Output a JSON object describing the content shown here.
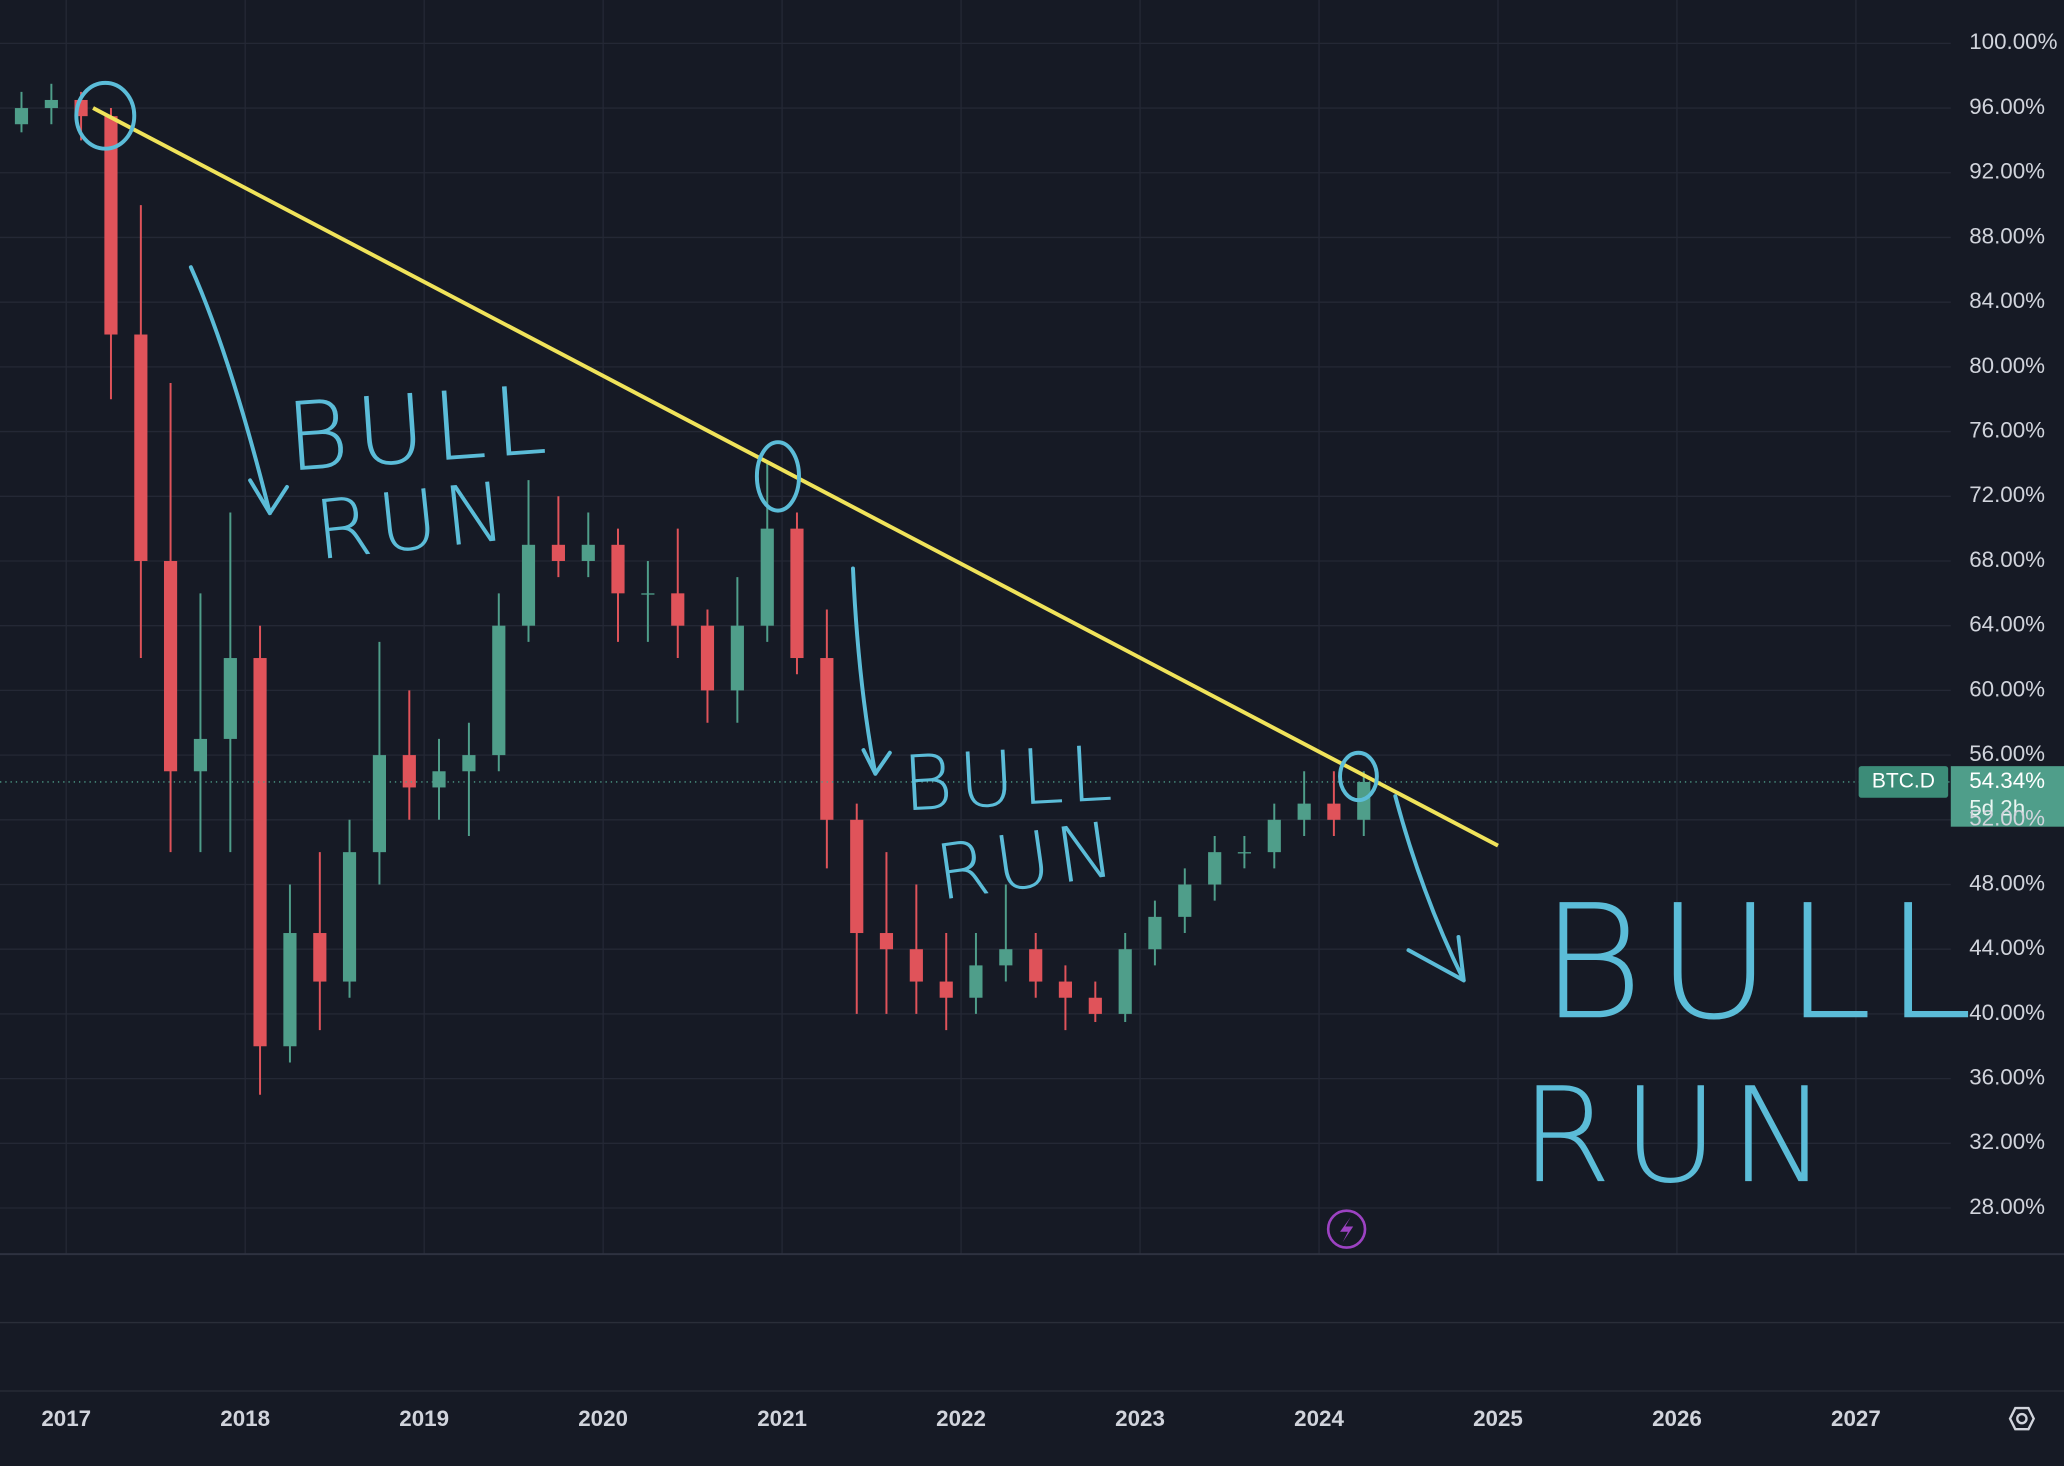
{
  "chart_data": {
    "type": "candlestick",
    "symbol": "BTC.D",
    "last_price": {
      "value": 54.34,
      "label": "54.34%"
    },
    "countdown": "5d 2h",
    "up_color": "#4f9e8a",
    "down_color": "#e0535a",
    "xlim": [
      2016.63,
      2027.53
    ],
    "ylim": [
      25.15,
      102.68
    ],
    "xticks": [
      2017,
      2018,
      2019,
      2020,
      2021,
      2022,
      2023,
      2024,
      2025,
      2026,
      2027
    ],
    "yticks": [
      {
        "value": 28,
        "label": "28.00%"
      },
      {
        "value": 32,
        "label": "32.00%"
      },
      {
        "value": 36,
        "label": "36.00%"
      },
      {
        "value": 40,
        "label": "40.00%"
      },
      {
        "value": 44,
        "label": "44.00%"
      },
      {
        "value": 48,
        "label": "48.00%"
      },
      {
        "value": 52,
        "label": "52.00%"
      },
      {
        "value": 56,
        "label": "56.00%"
      },
      {
        "value": 60,
        "label": "60.00%"
      },
      {
        "value": 64,
        "label": "64.00%"
      },
      {
        "value": 68,
        "label": "68.00%"
      },
      {
        "value": 72,
        "label": "72.00%"
      },
      {
        "value": 76,
        "label": "76.00%"
      },
      {
        "value": 80,
        "label": "80.00%"
      },
      {
        "value": 84,
        "label": "84.00%"
      },
      {
        "value": 88,
        "label": "88.00%"
      },
      {
        "value": 92,
        "label": "92.00%"
      },
      {
        "value": 96,
        "label": "96.00%"
      },
      {
        "value": 100,
        "label": "100.00%"
      }
    ],
    "grid": true,
    "candles": {
      "x": [
        2016.75,
        2016.917,
        2017.083,
        2017.25,
        2017.417,
        2017.583,
        2017.75,
        2017.917,
        2018.083,
        2018.25,
        2018.417,
        2018.583,
        2018.75,
        2018.917,
        2019.083,
        2019.25,
        2019.417,
        2019.583,
        2019.75,
        2019.917,
        2020.083,
        2020.25,
        2020.417,
        2020.583,
        2020.75,
        2020.917,
        2021.083,
        2021.25,
        2021.417,
        2021.583,
        2021.75,
        2021.917,
        2022.083,
        2022.25,
        2022.417,
        2022.583,
        2022.75,
        2022.917,
        2023.083,
        2023.25,
        2023.417,
        2023.583,
        2023.75,
        2023.917,
        2024.083,
        2024.25
      ],
      "open": [
        95,
        96,
        96.5,
        95.5,
        82,
        68,
        55,
        57,
        62,
        38,
        45,
        42,
        50,
        56,
        54,
        55,
        56,
        64,
        69,
        68,
        69,
        66,
        66,
        64,
        60,
        64,
        70,
        62,
        52,
        45,
        44,
        42,
        41,
        43,
        44,
        42,
        41,
        40,
        44,
        46,
        48,
        50,
        50,
        52,
        53,
        52
      ],
      "high": [
        97,
        97.5,
        97,
        96,
        90,
        79,
        66,
        71,
        64,
        48,
        50,
        52,
        63,
        60,
        57,
        58,
        66,
        73,
        72,
        71,
        70,
        68,
        70,
        65,
        67,
        74,
        71,
        65,
        53,
        50,
        48,
        45,
        45,
        48,
        45,
        43,
        42,
        45,
        47,
        49,
        51,
        51,
        53,
        55,
        55,
        55
      ],
      "low": [
        94.5,
        95,
        94,
        78,
        62,
        50,
        50,
        50,
        35,
        37,
        39,
        41,
        48,
        52,
        52,
        51,
        55,
        63,
        67,
        67,
        63,
        63,
        62,
        58,
        58,
        63,
        61,
        49,
        40,
        40,
        40,
        39,
        40,
        42,
        41,
        39,
        39.5,
        39.5,
        43,
        45,
        47,
        49,
        49,
        51,
        51,
        51
      ],
      "close": [
        96,
        96.5,
        95.5,
        82,
        68,
        55,
        57,
        62,
        38,
        45,
        42,
        50,
        56,
        54,
        55,
        56,
        64,
        69,
        68,
        69,
        66,
        66,
        64,
        60,
        64,
        70,
        62,
        52,
        45,
        44,
        42,
        41,
        43,
        44,
        42,
        41,
        40,
        44,
        46,
        48,
        50,
        50,
        52,
        53,
        52,
        54.34
      ]
    },
    "trendline": {
      "x": [
        2017.15,
        2025.0
      ],
      "y": [
        96,
        50.4
      ],
      "color": "#f0e35a"
    },
    "annotations": [
      [
        "BULL",
        "RUN"
      ],
      [
        "BULL",
        "RUN"
      ],
      [
        "BULL",
        "RUN"
      ]
    ]
  }
}
